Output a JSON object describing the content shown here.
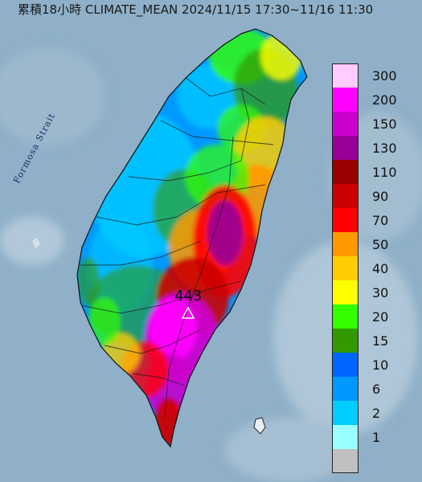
{
  "title": "累積18小時 CLIMATE_MEAN 2024/11/15 17:30~11/16 11:30",
  "map_labels": {
    "strait": "Formosa Strait",
    "peak_value": "443"
  },
  "legend": [
    {
      "label": "300",
      "color": "#ffccff"
    },
    {
      "label": "200",
      "color": "#ff00ff"
    },
    {
      "label": "150",
      "color": "#cc00cc"
    },
    {
      "label": "130",
      "color": "#990099"
    },
    {
      "label": "110",
      "color": "#990000"
    },
    {
      "label": "90",
      "color": "#cc0000"
    },
    {
      "label": "70",
      "color": "#ff0000"
    },
    {
      "label": "50",
      "color": "#ff9900"
    },
    {
      "label": "40",
      "color": "#ffcc00"
    },
    {
      "label": "30",
      "color": "#ffff00"
    },
    {
      "label": "20",
      "color": "#33ff00"
    },
    {
      "label": "15",
      "color": "#339900"
    },
    {
      "label": "10",
      "color": "#0066ff"
    },
    {
      "label": "6",
      "color": "#0099ff"
    },
    {
      "label": "2",
      "color": "#00ccff"
    },
    {
      "label": "1",
      "color": "#99ffff"
    },
    {
      "label": "",
      "color": "#c0c0c0"
    }
  ]
}
